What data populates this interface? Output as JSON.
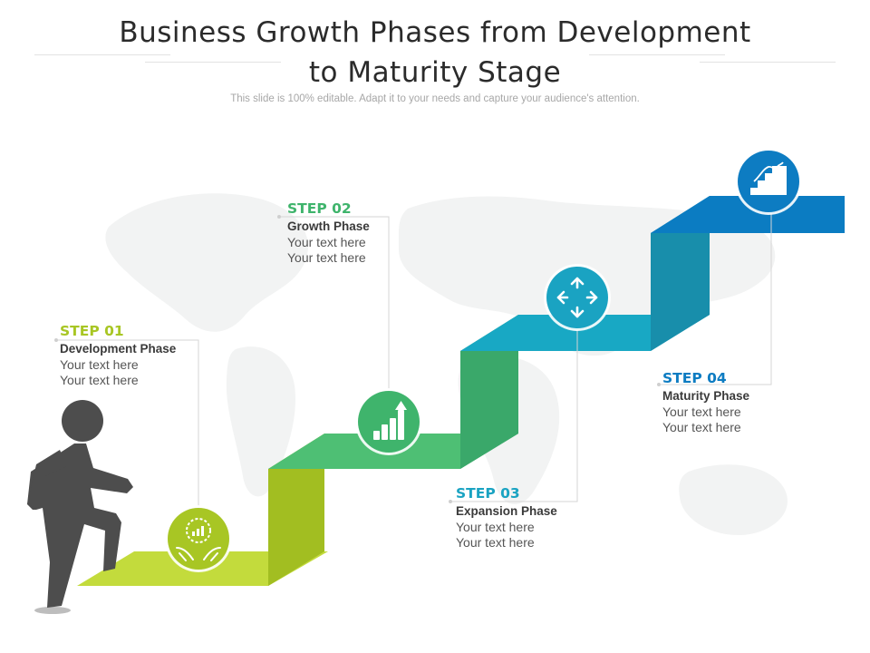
{
  "header": {
    "title_line1": "Business Growth Phases from Development",
    "title_line2": "to Maturity Stage",
    "subtitle": "This slide is 100% editable. Adapt it to your needs and capture your audience's attention."
  },
  "colors": {
    "step1": "#a8c624",
    "step2": "#3fb46c",
    "step3": "#1aa3c2",
    "step4": "#0d7cc2",
    "figure": "#4d4d4d"
  },
  "steps": [
    {
      "label": "STEP 01",
      "phase": "Development Phase",
      "line1": "Your text here",
      "line2": "Your text here",
      "icon": "hands-growth-icon"
    },
    {
      "label": "STEP 02",
      "phase": "Growth Phase",
      "line1": "Your text here",
      "line2": "Your text here",
      "icon": "bar-chart-up-icon"
    },
    {
      "label": "STEP 03",
      "phase": "Expansion Phase",
      "line1": "Your text here",
      "line2": "Your text here",
      "icon": "move-arrows-icon"
    },
    {
      "label": "STEP 04",
      "phase": "Maturity Phase",
      "line1": "Your text here",
      "line2": "Your text here",
      "icon": "stairs-up-icon"
    }
  ]
}
